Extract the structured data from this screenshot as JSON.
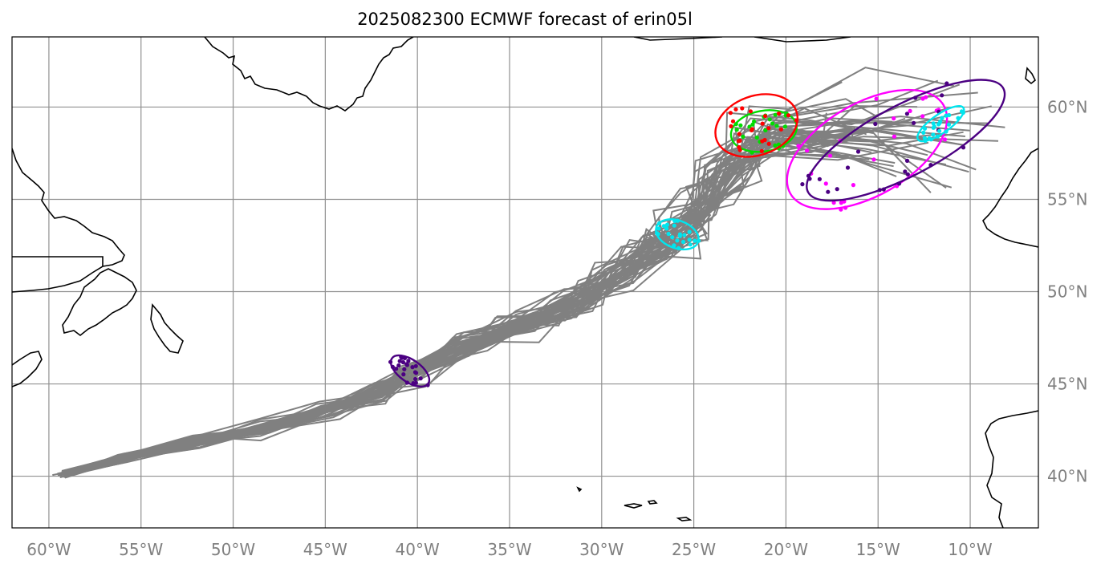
{
  "title": "2025082300 ECMWF forecast of erin05l",
  "lon_labels": [
    "60°W",
    "55°W",
    "50°W",
    "45°W",
    "40°W",
    "35°W",
    "30°W",
    "25°W",
    "20°W",
    "15°W",
    "10°W"
  ],
  "lat_labels": [
    "60°N",
    "55°N",
    "50°N",
    "45°N",
    "40°N"
  ],
  "colors": {
    "track": "#808080",
    "grid": "#909090",
    "coast": "#000000",
    "ellipse_day1": "#4b0082",
    "ellipse_day2": "#00e5ee",
    "ellipse_day3": "#00dd00",
    "ellipse_day4": "#ff0000",
    "ellipse_day5": "#ff00ff",
    "ellipse_day6": "#4b0082",
    "ellipse_day7": "#00e5ee"
  },
  "chart_data": {
    "type": "map",
    "projection": "PlateCarree",
    "extent": {
      "lon": [
        -62,
        -6.3
      ],
      "lat": [
        37.2,
        63.8
      ]
    },
    "grid": true,
    "lon_ticks": [
      -60,
      -55,
      -50,
      -45,
      -40,
      -35,
      -30,
      -25,
      -20,
      -15,
      -10
    ],
    "lat_ticks": [
      40,
      45,
      50,
      55,
      60
    ],
    "ensemble_center_track": [
      [
        -59.2,
        40.1
      ],
      [
        -56.0,
        41.0
      ],
      [
        -52.0,
        41.9
      ],
      [
        -48.5,
        42.6
      ],
      [
        -45.0,
        43.5
      ],
      [
        -42.0,
        44.6
      ],
      [
        -40.3,
        45.6
      ],
      [
        -37.5,
        47.0
      ],
      [
        -34.5,
        48.2
      ],
      [
        -31.5,
        49.3
      ],
      [
        -29.0,
        51.0
      ],
      [
        -27.0,
        52.5
      ],
      [
        -25.8,
        53.2
      ],
      [
        -24.5,
        54.6
      ],
      [
        -23.0,
        56.5
      ],
      [
        -21.5,
        58.5
      ]
    ],
    "ellipses": [
      {
        "name": "day1",
        "center": [
          -40.4,
          45.7
        ],
        "semi_major_deg": 1.2,
        "semi_minor_deg": 0.6,
        "angle_deg": 35,
        "color": "#4b0082"
      },
      {
        "name": "day2",
        "center": [
          -25.9,
          53.1
        ],
        "semi_major_deg": 1.2,
        "semi_minor_deg": 0.75,
        "angle_deg": 20,
        "color": "#00e5ee"
      },
      {
        "name": "day3",
        "center": [
          -21.2,
          58.7
        ],
        "semi_major_deg": 1.8,
        "semi_minor_deg": 1.1,
        "angle_deg": -10,
        "color": "#00dd00"
      },
      {
        "name": "day4",
        "center": [
          -21.6,
          59.0
        ],
        "semi_major_deg": 2.3,
        "semi_minor_deg": 1.6,
        "angle_deg": -20,
        "color": "#ff0000"
      },
      {
        "name": "day5",
        "center": [
          -15.6,
          57.7
        ],
        "semi_major_deg": 4.8,
        "semi_minor_deg": 2.5,
        "angle_deg": -30,
        "color": "#ff00ff"
      },
      {
        "name": "day6",
        "center": [
          -13.5,
          58.2
        ],
        "semi_major_deg": 6.0,
        "semi_minor_deg": 1.9,
        "angle_deg": -28,
        "color": "#4b0082"
      },
      {
        "name": "day7",
        "center": [
          -11.6,
          59.1
        ],
        "semi_major_deg": 1.5,
        "semi_minor_deg": 0.5,
        "angle_deg": -35,
        "color": "#00e5ee"
      }
    ],
    "members": 50
  }
}
